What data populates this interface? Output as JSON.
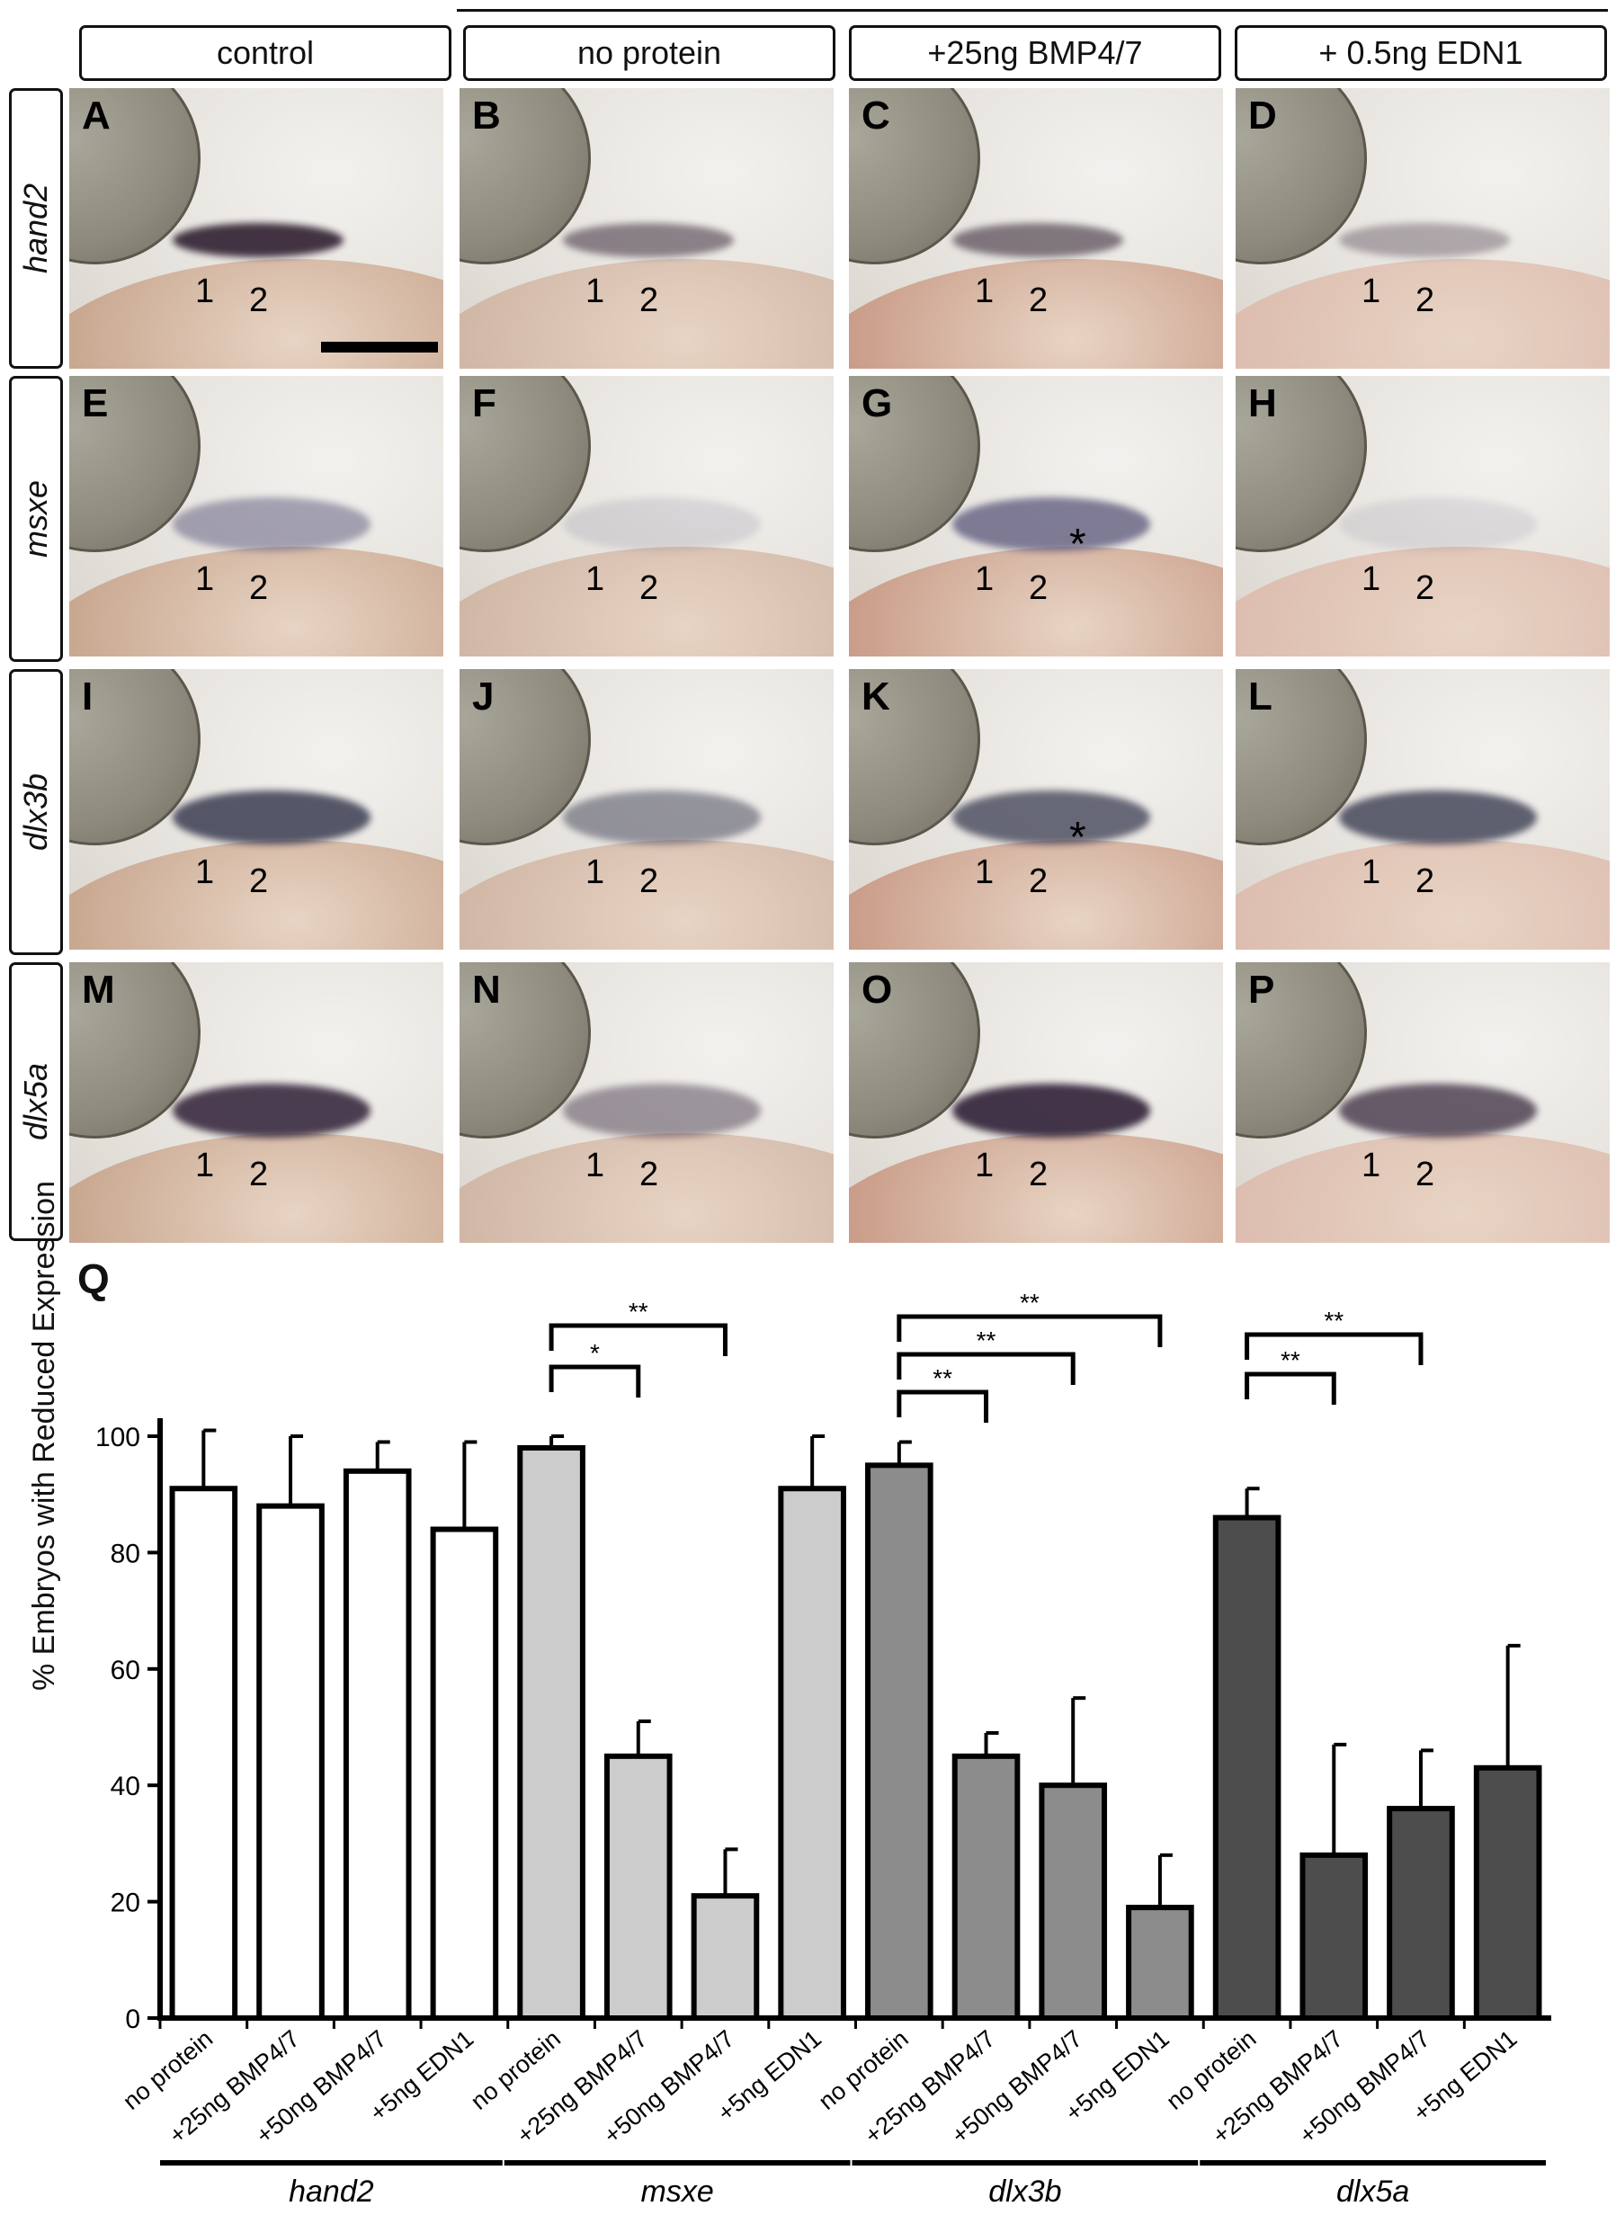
{
  "figure": {
    "columns": [
      "control",
      "no protein",
      "+25ng BMP4/7",
      "+ 0.5ng EDN1"
    ],
    "rows": [
      {
        "gene": "hand2",
        "panels": [
          "A",
          "B",
          "C",
          "D"
        ]
      },
      {
        "gene": "msxe",
        "panels": [
          "E",
          "F",
          "G",
          "H"
        ]
      },
      {
        "gene": "dlx3b",
        "panels": [
          "I",
          "J",
          "K",
          "L"
        ]
      },
      {
        "gene": "dlx5a",
        "panels": [
          "M",
          "N",
          "O",
          "P"
        ]
      }
    ],
    "arch_labels": [
      "1",
      "2"
    ],
    "asterisk": "*",
    "chart_letter": "Q"
  },
  "chart_data": {
    "type": "bar",
    "ylabel": "% Embryos with Reduced Expression",
    "ylim": [
      0,
      100
    ],
    "yticks": [
      0,
      20,
      40,
      60,
      80,
      100
    ],
    "categories": [
      "no protein",
      "+25ng BMP4/7",
      "+50ng BMP4/7",
      "+5ng EDN1",
      "no protein",
      "+25ng BMP4/7",
      "+50ng BMP4/7",
      "+5ng EDN1",
      "no protein",
      "+25ng BMP4/7",
      "+50ng BMP4/7",
      "+5ng EDN1",
      "no protein",
      "+25ng BMP4/7",
      "+50ng BMP4/7",
      "+5ng EDN1"
    ],
    "groups": [
      {
        "name": "hand2",
        "color": "#ffffff",
        "values": [
          91,
          88,
          94,
          84
        ],
        "errors": [
          10,
          12,
          5,
          15
        ]
      },
      {
        "name": "msxe",
        "color": "#cccccc",
        "values": [
          98,
          45,
          21,
          91
        ],
        "errors": [
          2,
          6,
          8,
          9
        ]
      },
      {
        "name": "dlx3b",
        "color": "#8c8c8c",
        "values": [
          95,
          45,
          40,
          19
        ],
        "errors": [
          4,
          4,
          15,
          9
        ]
      },
      {
        "name": "dlx5a",
        "color": "#4d4d4d",
        "values": [
          86,
          28,
          36,
          43
        ],
        "errors": [
          5,
          19,
          10,
          21
        ]
      }
    ],
    "significance": [
      {
        "group": 1,
        "from": 0,
        "to": 1,
        "label": "*"
      },
      {
        "group": 1,
        "from": 0,
        "to": 2,
        "label": "**"
      },
      {
        "group": 2,
        "from": 0,
        "to": 1,
        "label": "**"
      },
      {
        "group": 2,
        "from": 0,
        "to": 2,
        "label": "**"
      },
      {
        "group": 2,
        "from": 0,
        "to": 3,
        "label": "**"
      },
      {
        "group": 3,
        "from": 0,
        "to": 1,
        "label": "**"
      },
      {
        "group": 3,
        "from": 0,
        "to": 2,
        "label": "**"
      }
    ]
  }
}
